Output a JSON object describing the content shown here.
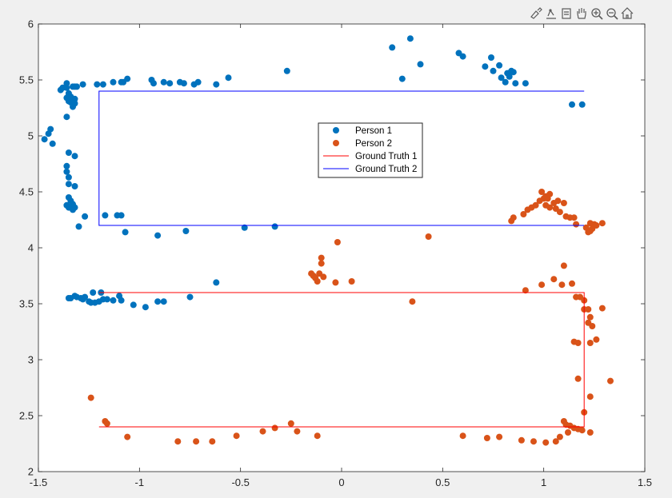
{
  "toolbar": {
    "icons": [
      "brush-icon",
      "data-tips-icon",
      "data-cursor-icon",
      "pan-hand-icon",
      "zoom-in-icon",
      "zoom-out-icon",
      "home-icon"
    ]
  },
  "colors": {
    "figure_bg": "#f0f0f0",
    "axes_bg": "#ffffff",
    "person1": "#0072bd",
    "person2": "#d95319",
    "ground_truth_1": "#ff0000",
    "ground_truth_2": "#0000ff",
    "axis_text": "#262626",
    "axis_line": "#262626"
  },
  "chart_data": {
    "type": "scatter",
    "title": "",
    "xlabel": "",
    "ylabel": "",
    "xlim": [
      -1.5,
      1.5
    ],
    "ylim": [
      2,
      6
    ],
    "grid": false,
    "legend_position": "upper-center",
    "x_ticks": [
      -1.5,
      -1,
      -0.5,
      0,
      0.5,
      1,
      1.5
    ],
    "x_tick_labels": [
      "-1.5",
      "-1",
      "-0.5",
      "0",
      "0.5",
      "1",
      "1.5"
    ],
    "y_ticks": [
      2,
      2.5,
      3,
      3.5,
      4,
      4.5,
      5,
      5.5,
      6
    ],
    "y_tick_labels": [
      "2",
      "2.5",
      "3",
      "3.5",
      "4",
      "4.5",
      "5",
      "5.5",
      "6"
    ],
    "series": [
      {
        "name": "Person 1",
        "kind": "markers",
        "color": "#0072bd",
        "points": [
          [
            -1.47,
            4.97
          ],
          [
            -1.45,
            5.02
          ],
          [
            -1.44,
            5.06
          ],
          [
            -1.43,
            4.93
          ],
          [
            -1.39,
            5.41
          ],
          [
            -1.38,
            5.43
          ],
          [
            -1.36,
            5.47
          ],
          [
            -1.36,
            5.43
          ],
          [
            -1.35,
            5.38
          ],
          [
            -1.36,
            5.34
          ],
          [
            -1.35,
            5.31
          ],
          [
            -1.34,
            5.35
          ],
          [
            -1.33,
            5.26
          ],
          [
            -1.32,
            5.29
          ],
          [
            -1.32,
            5.33
          ],
          [
            -1.34,
            5.3
          ],
          [
            -1.33,
            5.44
          ],
          [
            -1.32,
            5.44
          ],
          [
            -1.31,
            5.44
          ],
          [
            -1.28,
            5.46
          ],
          [
            -1.36,
            5.17
          ],
          [
            -1.35,
            4.85
          ],
          [
            -1.32,
            4.82
          ],
          [
            -1.36,
            4.73
          ],
          [
            -1.36,
            4.68
          ],
          [
            -1.35,
            4.63
          ],
          [
            -1.35,
            4.57
          ],
          [
            -1.32,
            4.55
          ],
          [
            -1.35,
            4.45
          ],
          [
            -1.34,
            4.42
          ],
          [
            -1.33,
            4.39
          ],
          [
            -1.32,
            4.36
          ],
          [
            -1.33,
            4.34
          ],
          [
            -1.35,
            4.36
          ],
          [
            -1.36,
            4.38
          ],
          [
            -1.27,
            4.28
          ],
          [
            -1.3,
            4.19
          ],
          [
            -1.21,
            5.46
          ],
          [
            -1.18,
            5.46
          ],
          [
            -1.13,
            5.48
          ],
          [
            -1.09,
            5.48
          ],
          [
            -1.08,
            5.48
          ],
          [
            -1.06,
            5.51
          ],
          [
            -0.94,
            5.5
          ],
          [
            -0.93,
            5.47
          ],
          [
            -0.88,
            5.48
          ],
          [
            -0.85,
            5.47
          ],
          [
            -0.8,
            5.48
          ],
          [
            -0.78,
            5.47
          ],
          [
            -0.73,
            5.46
          ],
          [
            -0.71,
            5.48
          ],
          [
            -0.62,
            5.46
          ],
          [
            -0.56,
            5.52
          ],
          [
            -0.27,
            5.58
          ],
          [
            0.25,
            5.79
          ],
          [
            0.3,
            5.51
          ],
          [
            0.34,
            5.87
          ],
          [
            0.39,
            5.64
          ],
          [
            0.58,
            5.74
          ],
          [
            0.6,
            5.71
          ],
          [
            0.71,
            5.62
          ],
          [
            0.74,
            5.7
          ],
          [
            0.75,
            5.58
          ],
          [
            0.78,
            5.63
          ],
          [
            0.79,
            5.52
          ],
          [
            0.81,
            5.48
          ],
          [
            0.82,
            5.56
          ],
          [
            0.84,
            5.58
          ],
          [
            0.83,
            5.53
          ],
          [
            0.85,
            5.57
          ],
          [
            0.86,
            5.47
          ],
          [
            0.91,
            5.47
          ],
          [
            1.14,
            5.28
          ],
          [
            1.19,
            5.28
          ],
          [
            -1.17,
            4.29
          ],
          [
            -1.11,
            4.29
          ],
          [
            -1.09,
            4.29
          ],
          [
            -1.07,
            4.14
          ],
          [
            -0.91,
            4.11
          ],
          [
            -0.77,
            4.15
          ],
          [
            -0.48,
            4.18
          ],
          [
            -0.33,
            4.19
          ],
          [
            -1.35,
            3.55
          ],
          [
            -1.34,
            3.55
          ],
          [
            -1.32,
            3.57
          ],
          [
            -1.31,
            3.56
          ],
          [
            -1.29,
            3.55
          ],
          [
            -1.28,
            3.54
          ],
          [
            -1.27,
            3.56
          ],
          [
            -1.25,
            3.52
          ],
          [
            -1.24,
            3.51
          ],
          [
            -1.23,
            3.6
          ],
          [
            -1.22,
            3.51
          ],
          [
            -1.2,
            3.52
          ],
          [
            -1.19,
            3.6
          ],
          [
            -1.18,
            3.54
          ],
          [
            -1.16,
            3.54
          ],
          [
            -1.13,
            3.53
          ],
          [
            -1.1,
            3.57
          ],
          [
            -1.09,
            3.53
          ],
          [
            -1.03,
            3.49
          ],
          [
            -0.97,
            3.47
          ],
          [
            -0.91,
            3.52
          ],
          [
            -0.88,
            3.52
          ],
          [
            -0.75,
            3.56
          ],
          [
            -0.62,
            3.69
          ]
        ]
      },
      {
        "name": "Person 2",
        "kind": "markers",
        "color": "#d95319",
        "points": [
          [
            0.84,
            4.24
          ],
          [
            0.85,
            4.27
          ],
          [
            0.9,
            4.3
          ],
          [
            0.92,
            4.34
          ],
          [
            0.94,
            4.36
          ],
          [
            0.96,
            4.38
          ],
          [
            0.98,
            4.42
          ],
          [
            0.99,
            4.5
          ],
          [
            1.0,
            4.44
          ],
          [
            1.01,
            4.46
          ],
          [
            1.02,
            4.44
          ],
          [
            1.03,
            4.48
          ],
          [
            1.01,
            4.38
          ],
          [
            1.03,
            4.36
          ],
          [
            1.05,
            4.4
          ],
          [
            1.06,
            4.35
          ],
          [
            1.07,
            4.42
          ],
          [
            1.08,
            4.32
          ],
          [
            1.1,
            4.4
          ],
          [
            1.11,
            4.28
          ],
          [
            1.13,
            4.27
          ],
          [
            1.15,
            4.27
          ],
          [
            1.16,
            4.21
          ],
          [
            1.21,
            4.18
          ],
          [
            1.22,
            4.14
          ],
          [
            1.23,
            4.15
          ],
          [
            1.24,
            4.17
          ],
          [
            1.26,
            4.2
          ],
          [
            1.23,
            4.22
          ],
          [
            1.25,
            4.21
          ],
          [
            1.29,
            4.22
          ],
          [
            0.43,
            4.1
          ],
          [
            -0.02,
            4.05
          ],
          [
            -0.1,
            3.91
          ],
          [
            -0.1,
            3.86
          ],
          [
            -0.15,
            3.77
          ],
          [
            -0.14,
            3.75
          ],
          [
            -0.13,
            3.73
          ],
          [
            -0.12,
            3.7
          ],
          [
            -0.11,
            3.77
          ],
          [
            -0.09,
            3.74
          ],
          [
            -0.03,
            3.69
          ],
          [
            0.05,
            3.7
          ],
          [
            0.35,
            3.52
          ],
          [
            0.91,
            3.62
          ],
          [
            0.99,
            3.67
          ],
          [
            1.05,
            3.72
          ],
          [
            1.1,
            3.84
          ],
          [
            1.09,
            3.67
          ],
          [
            1.14,
            3.68
          ],
          [
            1.16,
            3.56
          ],
          [
            1.18,
            3.56
          ],
          [
            1.2,
            3.53
          ],
          [
            1.2,
            3.45
          ],
          [
            1.22,
            3.45
          ],
          [
            1.23,
            3.38
          ],
          [
            1.24,
            3.3
          ],
          [
            1.22,
            3.33
          ],
          [
            1.26,
            3.18
          ],
          [
            1.23,
            3.15
          ],
          [
            1.15,
            3.16
          ],
          [
            1.17,
            3.15
          ],
          [
            1.29,
            3.46
          ],
          [
            1.17,
            2.83
          ],
          [
            1.33,
            2.81
          ],
          [
            1.23,
            2.67
          ],
          [
            1.2,
            2.53
          ],
          [
            1.1,
            2.45
          ],
          [
            1.11,
            2.42
          ],
          [
            1.13,
            2.41
          ],
          [
            1.15,
            2.39
          ],
          [
            1.17,
            2.38
          ],
          [
            1.19,
            2.37
          ],
          [
            1.12,
            2.35
          ],
          [
            1.08,
            2.31
          ],
          [
            1.06,
            2.27
          ],
          [
            1.01,
            2.26
          ],
          [
            0.95,
            2.27
          ],
          [
            0.89,
            2.28
          ],
          [
            0.78,
            2.31
          ],
          [
            0.72,
            2.3
          ],
          [
            0.6,
            2.32
          ],
          [
            1.23,
            2.35
          ],
          [
            -1.24,
            2.66
          ],
          [
            -1.17,
            2.45
          ],
          [
            -1.16,
            2.43
          ],
          [
            -1.06,
            2.31
          ],
          [
            -0.81,
            2.27
          ],
          [
            -0.72,
            2.27
          ],
          [
            -0.64,
            2.27
          ],
          [
            -0.52,
            2.32
          ],
          [
            -0.39,
            2.36
          ],
          [
            -0.33,
            2.39
          ],
          [
            -0.25,
            2.43
          ],
          [
            -0.22,
            2.36
          ],
          [
            -0.12,
            2.32
          ]
        ]
      },
      {
        "name": "Ground Truth 1",
        "kind": "line",
        "color": "#ff0000",
        "points": [
          [
            -1.2,
            3.6
          ],
          [
            1.2,
            3.6
          ],
          [
            1.2,
            2.4
          ],
          [
            -1.2,
            2.4
          ]
        ]
      },
      {
        "name": "Ground Truth 2",
        "kind": "line",
        "color": "#0000ff",
        "points": [
          [
            1.2,
            5.4
          ],
          [
            -1.2,
            5.4
          ],
          [
            -1.2,
            4.2
          ],
          [
            1.2,
            4.2
          ]
        ]
      }
    ],
    "legend": [
      "Person 1",
      "Person 2",
      "Ground Truth 1",
      "Ground Truth 2"
    ]
  }
}
